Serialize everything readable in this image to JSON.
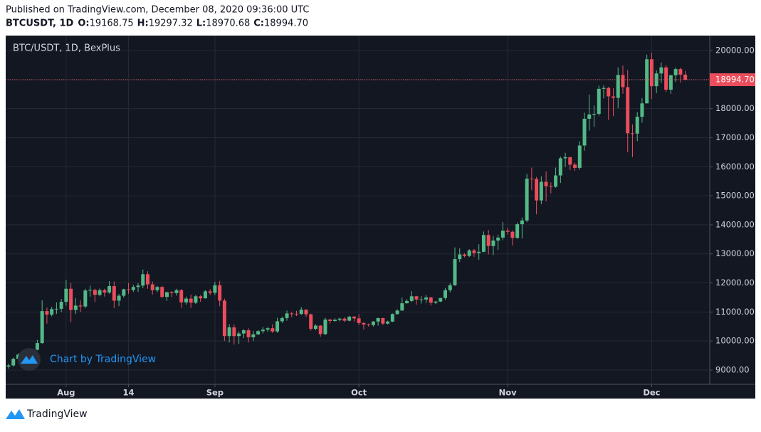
{
  "header": {
    "published": "Published on TradingView.com, December 08, 2020 09:36:00 UTC",
    "symbol": "BTCUSDT, 1D",
    "ohlc": [
      {
        "key": "O:",
        "value": "19168.75"
      },
      {
        "key": "H:",
        "value": "19297.32"
      },
      {
        "key": "L:",
        "value": "18970.68"
      },
      {
        "key": "C:",
        "value": "18994.70"
      }
    ]
  },
  "chart_data": {
    "type": "candlestick",
    "title": "BTC/USDT, 1D, BexPlus",
    "open": [
      9120,
      9160,
      9390,
      9530,
      9600,
      9540,
      9700,
      9930,
      11030,
      10910,
      11100,
      11110,
      11350,
      11800,
      11070,
      11220,
      11190,
      11740,
      11760,
      11590,
      11750,
      11670,
      11890,
      11390,
      11560,
      11780,
      11760,
      11860,
      11910,
      12300,
      11950,
      11750,
      11860,
      11520,
      11680,
      11650,
      11750,
      11330,
      11460,
      11320,
      11540,
      11470,
      11710,
      11660,
      11920,
      11390,
      10170,
      10470,
      10170,
      10260,
      10370,
      10130,
      10230,
      10340,
      10390,
      10440,
      10330,
      10680,
      10790,
      10950,
      10940,
      10930,
      11080,
      10920,
      10420,
      10530,
      10240,
      10740,
      10690,
      10730,
      10770,
      10700,
      10840,
      10780,
      10620,
      10570,
      10550,
      10670,
      10790,
      10600,
      10670,
      10930,
      11050,
      11300,
      11380,
      11540,
      11430,
      11430,
      11500,
      11320,
      11360,
      11480,
      11750,
      11920,
      12820,
      12980,
      12930,
      13120,
      13030,
      13070,
      13650,
      13270,
      13460,
      13560,
      13800,
      13760,
      13550,
      14020,
      14150,
      15590,
      15580,
      14840,
      15480,
      15330,
      15310,
      15700,
      16290,
      16330,
      16070,
      15960,
      16730,
      17650,
      17800,
      17820,
      18680,
      18710,
      18420,
      18370,
      19160,
      18740,
      17150,
      17140,
      17720,
      18180,
      19700,
      18770,
      19210,
      19420,
      18650,
      19150,
      19360,
      19168.75
    ],
    "high": [
      9220,
      9430,
      9580,
      9680,
      9650,
      9740,
      10040,
      11400,
      11150,
      11180,
      11330,
      11450,
      12100,
      12000,
      11480,
      11400,
      11800,
      11910,
      11800,
      11810,
      11800,
      12060,
      12050,
      11620,
      11800,
      12000,
      11940,
      11990,
      12460,
      12400,
      12050,
      11900,
      11900,
      11700,
      11720,
      11800,
      11790,
      11530,
      11600,
      11590,
      11580,
      11750,
      11790,
      12040,
      12070,
      11460,
      10580,
      10570,
      10330,
      10410,
      10440,
      10350,
      10380,
      10480,
      10480,
      10580,
      10800,
      10840,
      11050,
      11000,
      11040,
      11170,
      11090,
      10940,
      10580,
      10550,
      10800,
      10770,
      10780,
      10800,
      10820,
      10870,
      10860,
      10920,
      10650,
      10600,
      10690,
      10800,
      10800,
      10700,
      10950,
      11090,
      11500,
      11440,
      11720,
      11560,
      11550,
      11580,
      11520,
      11380,
      11490,
      11830,
      11990,
      13220,
      13190,
      13020,
      13160,
      13170,
      13330,
      13770,
      13820,
      13620,
      13660,
      14100,
      13900,
      13810,
      14080,
      14250,
      15750,
      15970,
      15650,
      15670,
      15840,
      15460,
      15970,
      16350,
      16480,
      16330,
      16140,
      16880,
      17860,
      18480,
      18110,
      18790,
      18800,
      18750,
      18700,
      19420,
      19480,
      19330,
      17460,
      17880,
      18360,
      19860,
      19920,
      19320,
      19590,
      19500,
      19170,
      19420,
      19410,
      19297.32
    ],
    "low": [
      9050,
      9120,
      9330,
      9480,
      9430,
      9510,
      9680,
      9900,
      10600,
      10850,
      10930,
      11000,
      11220,
      10650,
      10930,
      11000,
      11130,
      11530,
      11340,
      11540,
      11530,
      11630,
      11130,
      11200,
      11500,
      11620,
      11690,
      11690,
      11820,
      11800,
      11600,
      11680,
      11480,
      11380,
      11510,
      11560,
      11140,
      11250,
      11140,
      11280,
      11350,
      11460,
      11580,
      11580,
      11200,
      10000,
      9950,
      9880,
      9900,
      10100,
      9950,
      10000,
      10200,
      10260,
      10320,
      10280,
      10280,
      10620,
      10700,
      10820,
      10860,
      10900,
      10830,
      10360,
      10370,
      10150,
      10200,
      10600,
      10660,
      10680,
      10650,
      10680,
      10670,
      10550,
      10400,
      10500,
      10500,
      10530,
      10550,
      10570,
      10650,
      10900,
      11040,
      11290,
      11340,
      11250,
      11290,
      11310,
      11220,
      11270,
      11340,
      11420,
      11680,
      11900,
      12720,
      12880,
      12890,
      12900,
      12800,
      13060,
      12980,
      12960,
      13140,
      13470,
      13660,
      13290,
      13520,
      13530,
      14090,
      15190,
      14360,
      14710,
      14810,
      15080,
      15280,
      15440,
      15990,
      15880,
      15860,
      15890,
      16550,
      17240,
      17370,
      17760,
      18350,
      17610,
      17740,
      18020,
      18510,
      16500,
      16330,
      16880,
      17520,
      18180,
      18330,
      18530,
      18890,
      18570,
      18510,
      18920,
      18900,
      18970.68
    ],
    "close": [
      9160,
      9390,
      9530,
      9600,
      9540,
      9700,
      9930,
      11030,
      10910,
      11100,
      11110,
      11350,
      11800,
      11070,
      11220,
      11190,
      11740,
      11760,
      11590,
      11750,
      11670,
      11890,
      11390,
      11560,
      11780,
      11760,
      11860,
      11910,
      12300,
      11950,
      11750,
      11860,
      11520,
      11680,
      11650,
      11750,
      11330,
      11460,
      11320,
      11540,
      11470,
      11710,
      11660,
      11920,
      11390,
      10170,
      10470,
      10170,
      10260,
      10370,
      10130,
      10230,
      10340,
      10390,
      10440,
      10330,
      10680,
      10790,
      10950,
      10940,
      10930,
      11080,
      10920,
      10420,
      10530,
      10240,
      10740,
      10690,
      10730,
      10770,
      10700,
      10840,
      10780,
      10620,
      10570,
      10550,
      10670,
      10790,
      10600,
      10670,
      10930,
      11050,
      11300,
      11380,
      11540,
      11430,
      11430,
      11500,
      11320,
      11360,
      11480,
      11750,
      11920,
      12820,
      12980,
      12930,
      13120,
      13030,
      13070,
      13650,
      13270,
      13460,
      13560,
      13800,
      13760,
      13550,
      14020,
      14150,
      15590,
      15580,
      14840,
      15480,
      15330,
      15310,
      15700,
      16290,
      16330,
      16070,
      15960,
      16730,
      17650,
      17800,
      17820,
      18680,
      18710,
      18420,
      18370,
      19160,
      18740,
      17150,
      17140,
      17720,
      18180,
      19700,
      18770,
      19210,
      19420,
      18650,
      19150,
      19360,
      19168.75,
      18994.7
    ],
    "up_color": "#53b987",
    "down_color": "#eb4d5c",
    "ylim": [
      8510,
      20514
    ],
    "yticks": [
      {
        "value": 9000,
        "label": "9000.00"
      },
      {
        "value": 10000,
        "label": "10000.00"
      },
      {
        "value": 11000,
        "label": "11000.00"
      },
      {
        "value": 12000,
        "label": "12000.00"
      },
      {
        "value": 13000,
        "label": "13000.00"
      },
      {
        "value": 14000,
        "label": "14000.00"
      },
      {
        "value": 15000,
        "label": "15000.00"
      },
      {
        "value": 16000,
        "label": "16000.00"
      },
      {
        "value": 17000,
        "label": "17000.00"
      },
      {
        "value": 18000,
        "label": "18000.00"
      },
      {
        "value": 19000,
        "label": "19000.00"
      },
      {
        "value": 20000,
        "label": "20000.00"
      }
    ],
    "xlim": [
      -0.59,
      146.1
    ],
    "xticks": [
      {
        "value": 12,
        "label": "Aug"
      },
      {
        "value": 25,
        "label": "14"
      },
      {
        "value": 43,
        "label": "Sep"
      },
      {
        "value": 73,
        "label": "Oct"
      },
      {
        "value": 104,
        "label": "Nov"
      },
      {
        "value": 134,
        "label": "Dec"
      }
    ],
    "last_price_label": "18994.70",
    "grid": true
  },
  "watermark": "Chart by TradingView",
  "footer": "TradingView"
}
